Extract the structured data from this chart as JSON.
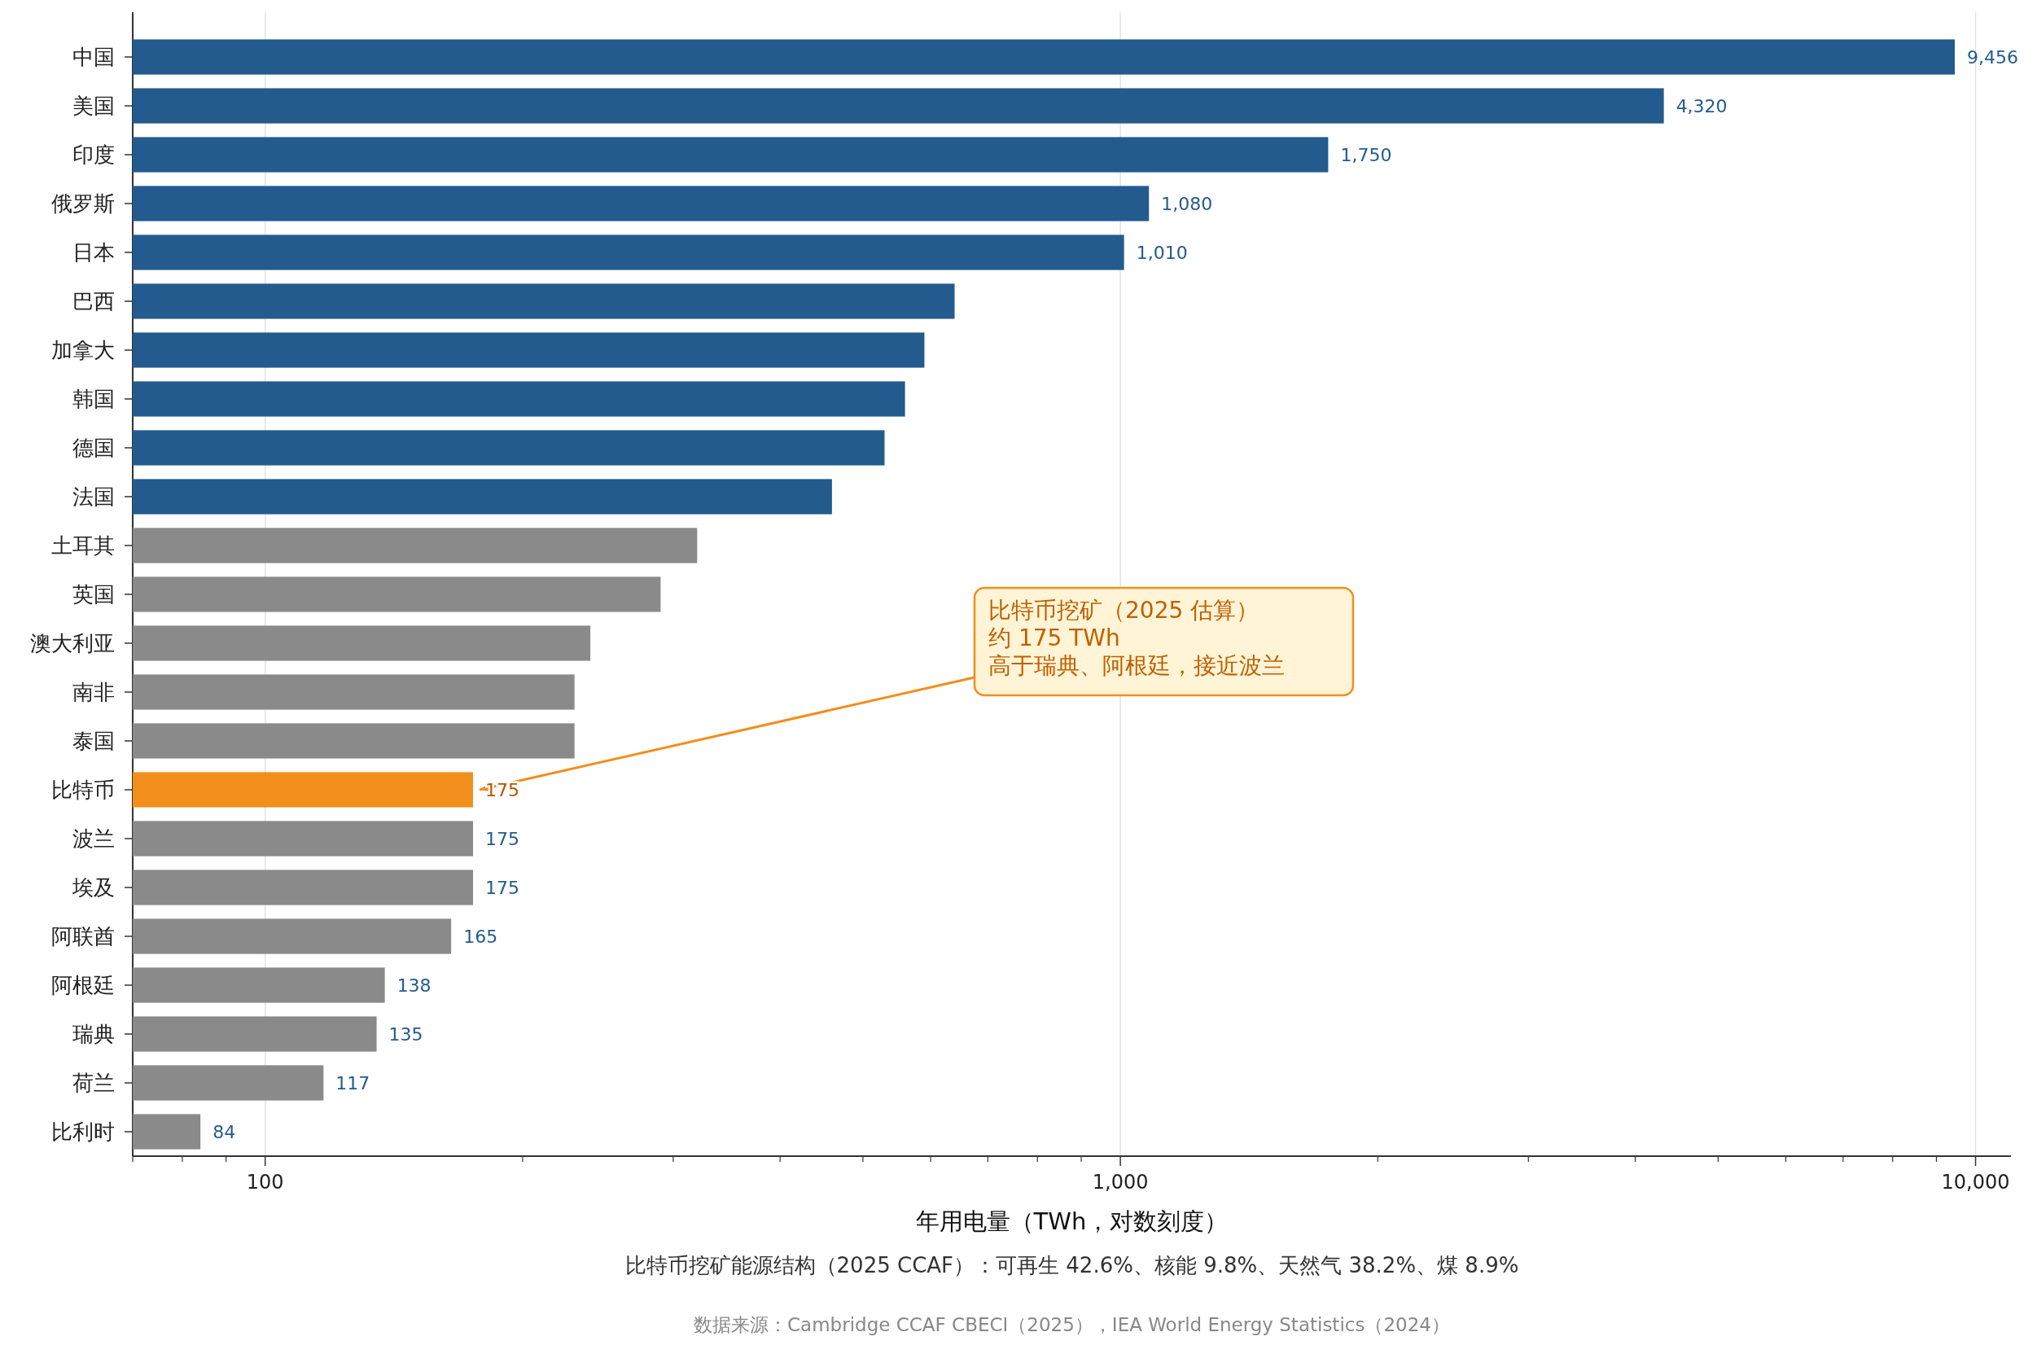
{
  "chart_data": {
    "type": "bar",
    "orientation": "horizontal",
    "log": "x",
    "xlabel": "年用电量（TWh，对数刻度）",
    "categories": [
      "中国",
      "美国",
      "印度",
      "俄罗斯",
      "日本",
      "巴西",
      "加拿大",
      "韩国",
      "德国",
      "法国",
      "土耳其",
      "英国",
      "澳大利亚",
      "南非",
      "泰国",
      "比特币",
      "波兰",
      "埃及",
      "阿联酋",
      "阿根廷",
      "瑞典",
      "荷兰",
      "比利时"
    ],
    "values": [
      9456,
      4320,
      1750,
      1080,
      1010,
      640,
      590,
      560,
      530,
      460,
      320,
      290,
      240,
      230,
      230,
      175,
      175,
      175,
      165,
      138,
      135,
      117,
      84
    ],
    "colors": [
      "#245b8e",
      "#245b8e",
      "#245b8e",
      "#245b8e",
      "#245b8e",
      "#245b8e",
      "#245b8e",
      "#245b8e",
      "#245b8e",
      "#245b8e",
      "#8a8a8a",
      "#8a8a8a",
      "#8a8a8a",
      "#8a8a8a",
      "#8a8a8a",
      "#f28e1c",
      "#8a8a8a",
      "#8a8a8a",
      "#8a8a8a",
      "#8a8a8a",
      "#8a8a8a",
      "#8a8a8a",
      "#8a8a8a"
    ],
    "value_labels": [
      "9,456",
      "4,320",
      "1,750",
      "1,080",
      "1,010",
      null,
      null,
      null,
      null,
      null,
      null,
      null,
      null,
      null,
      null,
      "175",
      "175",
      "175",
      "165",
      "138",
      "135",
      "117",
      "84"
    ],
    "xlim": [
      70,
      11000
    ],
    "xticks": [
      100,
      {
        "value": 1000,
        "label": "1,000"
      },
      {
        "value": 10000,
        "label": "10,000"
      }
    ],
    "grid": "x",
    "annotations": [
      "比特币挖矿（2025 估算）",
      "约 175 TWh",
      {
        "text": "高于瑞典、阿根廷，接近波兰",
        "x": 175,
        "y": "比特币"
      },
      "比特币挖矿能源结构（2025 CCAF）：可再生 42.6%、核能 9.8%、天然气 38.2%、煤 8.9%",
      "数据来源：Cambridge CCAF CBECI（2025），IEA World Energy Statistics（2024）"
    ]
  }
}
